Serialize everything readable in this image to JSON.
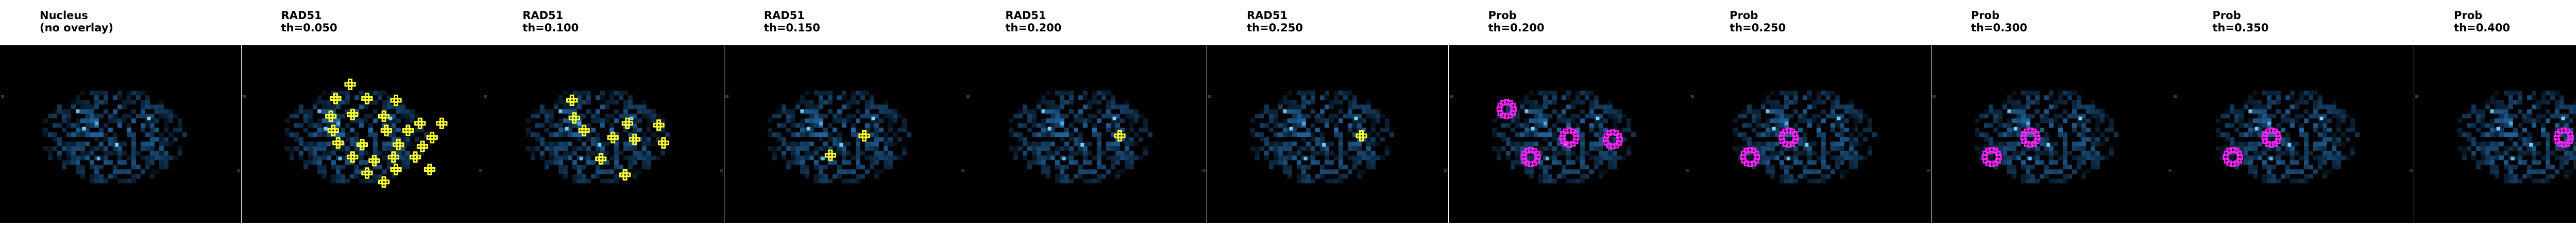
{
  "panels": [
    {
      "title": "Nucleus\n(no overlay)",
      "overlay": "none",
      "points": []
    },
    {
      "title": "RAD51\nth=0.050",
      "overlay": "plus",
      "points": [
        [
          0.45,
          0.22
        ],
        [
          0.39,
          0.3
        ],
        [
          0.52,
          0.3
        ],
        [
          0.64,
          0.31
        ],
        [
          0.37,
          0.4
        ],
        [
          0.46,
          0.39
        ],
        [
          0.59,
          0.4
        ],
        [
          0.74,
          0.44
        ],
        [
          0.83,
          0.44
        ],
        [
          0.38,
          0.48
        ],
        [
          0.6,
          0.48
        ],
        [
          0.69,
          0.48
        ],
        [
          0.79,
          0.52
        ],
        [
          0.4,
          0.55
        ],
        [
          0.5,
          0.56
        ],
        [
          0.65,
          0.56
        ],
        [
          0.75,
          0.57
        ],
        [
          0.46,
          0.63
        ],
        [
          0.55,
          0.65
        ],
        [
          0.63,
          0.63
        ],
        [
          0.72,
          0.63
        ],
        [
          0.52,
          0.72
        ],
        [
          0.64,
          0.7
        ],
        [
          0.78,
          0.7
        ],
        [
          0.59,
          0.77
        ]
      ]
    },
    {
      "title": "RAD51\nth=0.100",
      "overlay": "plus",
      "points": [
        [
          0.37,
          0.31
        ],
        [
          0.38,
          0.41
        ],
        [
          0.42,
          0.48
        ],
        [
          0.6,
          0.44
        ],
        [
          0.73,
          0.45
        ],
        [
          0.54,
          0.52
        ],
        [
          0.63,
          0.53
        ],
        [
          0.75,
          0.55
        ],
        [
          0.49,
          0.64
        ],
        [
          0.59,
          0.73
        ]
      ]
    },
    {
      "title": "RAD51\nth=0.150",
      "overlay": "plus",
      "points": [
        [
          0.58,
          0.51
        ],
        [
          0.44,
          0.62
        ]
      ]
    },
    {
      "title": "RAD51\nth=0.200",
      "overlay": "plus",
      "points": [
        [
          0.64,
          0.51
        ]
      ]
    },
    {
      "title": "RAD51\nth=0.250",
      "overlay": "plus",
      "points": [
        [
          0.64,
          0.51
        ]
      ]
    },
    {
      "title": "Prob\nth=0.200",
      "overlay": "ring",
      "points": [
        [
          0.24,
          0.36
        ],
        [
          0.5,
          0.52
        ],
        [
          0.68,
          0.53
        ],
        [
          0.34,
          0.63
        ]
      ]
    },
    {
      "title": "Prob\nth=0.250",
      "overlay": "ring",
      "points": [
        [
          0.41,
          0.52
        ],
        [
          0.25,
          0.63
        ]
      ]
    },
    {
      "title": "Prob\nth=0.300",
      "overlay": "ring",
      "points": [
        [
          0.41,
          0.52
        ],
        [
          0.25,
          0.63
        ]
      ]
    },
    {
      "title": "Prob\nth=0.350",
      "overlay": "ring",
      "points": [
        [
          0.41,
          0.52
        ],
        [
          0.25,
          0.63
        ]
      ]
    },
    {
      "title": "Prob\nth=0.400",
      "overlay": "ring",
      "points": [
        [
          0.62,
          0.52
        ]
      ]
    }
  ],
  "colors": {
    "background": "#000000",
    "nucleus": "#2a7fc9",
    "nucleus_bright": "#7ad3ff",
    "rad51": "#ffff33",
    "prob": "#ff22ff"
  }
}
